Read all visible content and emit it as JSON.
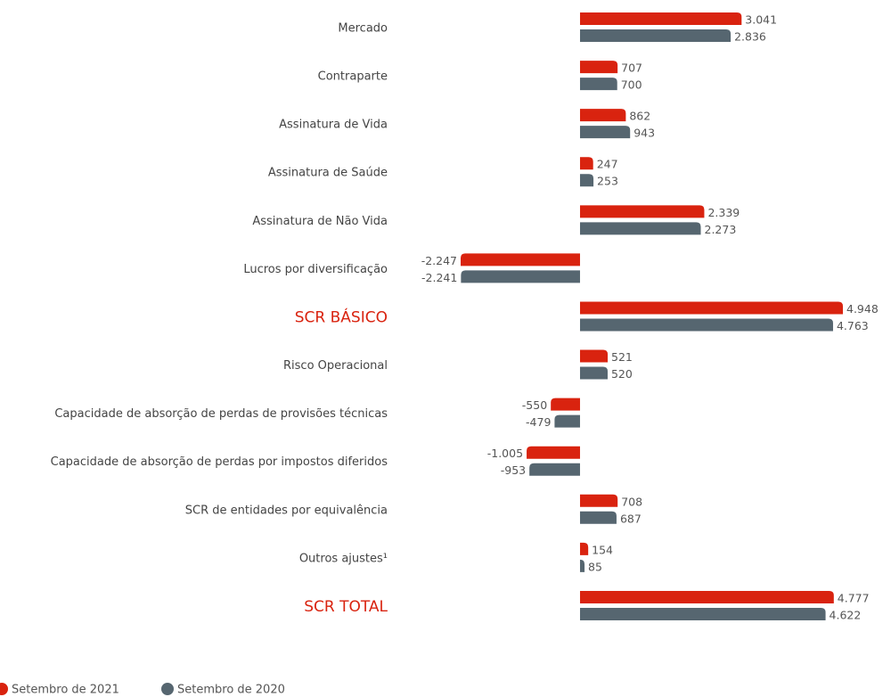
{
  "chart_data": {
    "type": "bar",
    "orientation": "horizontal",
    "categories": [
      "Mercado",
      "Contraparte",
      "Assinatura de Vida",
      "Assinatura de Saúde",
      "Assinatura de Não Vida",
      "Lucros por diversificação",
      "SCR BÁSICO",
      "Risco Operacional",
      "Capacidade de absorção de perdas de provisões técnicas",
      "Capacidade de absorção de perdas por impostos diferidos",
      "SCR de entidades por equivalência",
      "Outros ajustes¹",
      "SCR TOTAL"
    ],
    "category_colors": [
      "#444",
      "#444",
      "#444",
      "#444",
      "#444",
      "#444",
      "#d9230f",
      "#444",
      "#444",
      "#444",
      "#444",
      "#444",
      "#d9230f"
    ],
    "series": [
      {
        "name": "Setembro de 2021",
        "color": "#d9230f",
        "values": [
          3041,
          707,
          862,
          247,
          2339,
          -2247,
          4948,
          521,
          -550,
          -1005,
          708,
          154,
          4777
        ],
        "value_labels": [
          "3.041",
          "707",
          "862",
          "247",
          "2.339",
          "-2.247",
          "4.948",
          "521",
          "-550",
          "-1.005",
          "708",
          "154",
          "4.777"
        ]
      },
      {
        "name": "Setembro de 2020",
        "color": "#566670",
        "values": [
          2836,
          700,
          943,
          253,
          2273,
          -2241,
          4763,
          520,
          -479,
          -953,
          687,
          85,
          4622
        ],
        "value_labels": [
          "2.836",
          "700",
          "943",
          "253",
          "2.273",
          "-2.241",
          "4.763",
          "520",
          "-479",
          "-953",
          "687",
          "85",
          "4.622"
        ]
      }
    ],
    "legend": "bottom-left"
  }
}
